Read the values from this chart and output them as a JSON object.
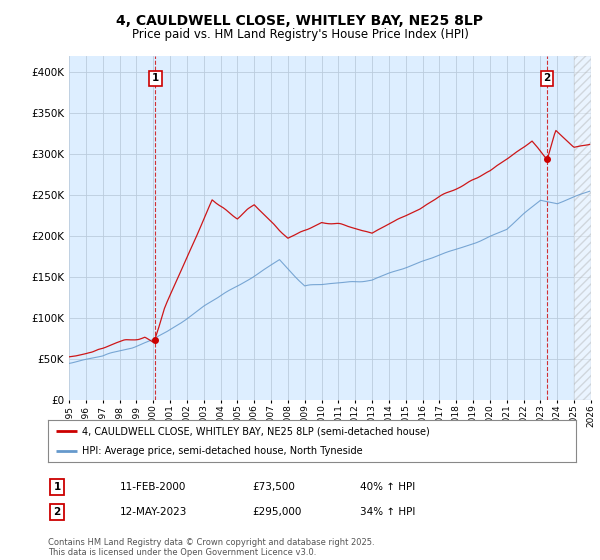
{
  "title": "4, CAULDWELL CLOSE, WHITLEY BAY, NE25 8LP",
  "subtitle": "Price paid vs. HM Land Registry's House Price Index (HPI)",
  "legend_line1": "4, CAULDWELL CLOSE, WHITLEY BAY, NE25 8LP (semi-detached house)",
  "legend_line2": "HPI: Average price, semi-detached house, North Tyneside",
  "annotation1_date": "11-FEB-2000",
  "annotation1_price": "£73,500",
  "annotation1_hpi": "40% ↑ HPI",
  "annotation2_date": "12-MAY-2023",
  "annotation2_price": "£295,000",
  "annotation2_hpi": "34% ↑ HPI",
  "footer": "Contains HM Land Registry data © Crown copyright and database right 2025.\nThis data is licensed under the Open Government Licence v3.0.",
  "red_color": "#cc0000",
  "blue_color": "#6699cc",
  "plot_bg_color": "#ddeeff",
  "background_color": "#ffffff",
  "grid_color": "#bbccdd",
  "ylim": [
    0,
    420000
  ],
  "yticks": [
    0,
    50000,
    100000,
    150000,
    200000,
    250000,
    300000,
    350000,
    400000
  ],
  "x_start_year": 1995,
  "x_end_year": 2026
}
